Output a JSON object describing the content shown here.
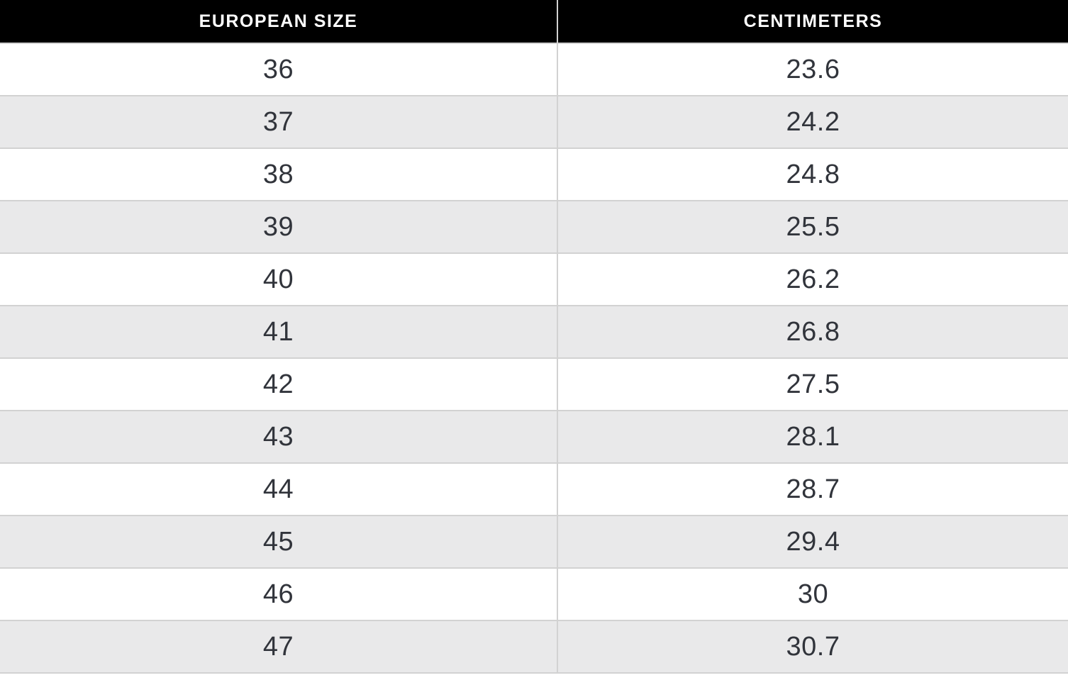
{
  "table": {
    "columns": [
      {
        "label": "EUROPEAN SIZE"
      },
      {
        "label": "CENTIMETERS"
      }
    ],
    "rows": [
      {
        "european_size": "36",
        "centimeters": "23.6"
      },
      {
        "european_size": "37",
        "centimeters": "24.2"
      },
      {
        "european_size": "38",
        "centimeters": "24.8"
      },
      {
        "european_size": "39",
        "centimeters": "25.5"
      },
      {
        "european_size": "40",
        "centimeters": "26.2"
      },
      {
        "european_size": "41",
        "centimeters": "26.8"
      },
      {
        "european_size": "42",
        "centimeters": "27.5"
      },
      {
        "european_size": "43",
        "centimeters": "28.1"
      },
      {
        "european_size": "44",
        "centimeters": "28.7"
      },
      {
        "european_size": "45",
        "centimeters": "29.4"
      },
      {
        "european_size": "46",
        "centimeters": "30"
      },
      {
        "european_size": "47",
        "centimeters": "30.7"
      }
    ]
  },
  "colors": {
    "header_bg": "#000000",
    "header_text": "#ffffff",
    "row_bg": "#ffffff",
    "row_alt_bg": "#e9e9ea",
    "border": "#d2d2d2",
    "cell_text": "#31343b"
  },
  "chart_data": {
    "type": "table",
    "columns": [
      "EUROPEAN SIZE",
      "CENTIMETERS"
    ],
    "european_sizes": [
      36,
      37,
      38,
      39,
      40,
      41,
      42,
      43,
      44,
      45,
      46,
      47
    ],
    "centimeters": [
      23.6,
      24.2,
      24.8,
      25.5,
      26.2,
      26.8,
      27.5,
      28.1,
      28.7,
      29.4,
      30,
      30.7
    ]
  }
}
